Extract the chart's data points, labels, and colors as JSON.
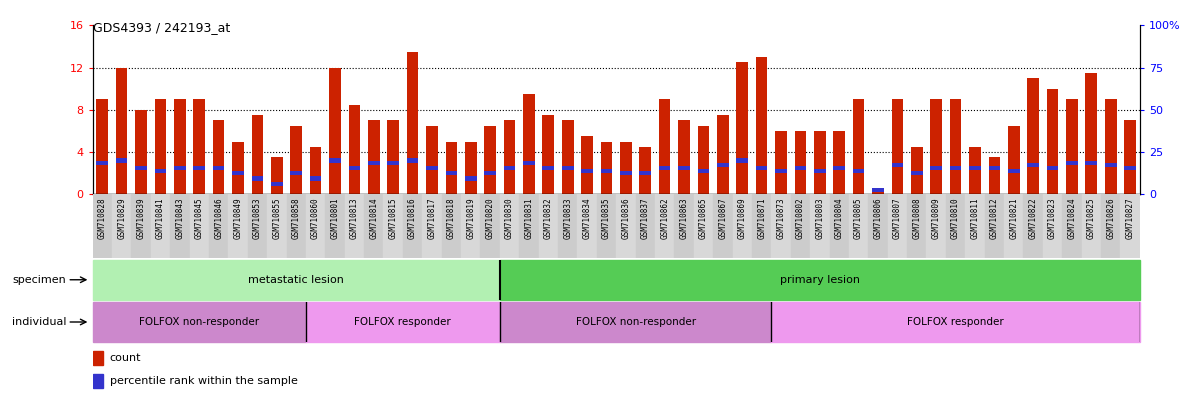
{
  "title": "GDS4393 / 242193_at",
  "samples": [
    "GSM710828",
    "GSM710829",
    "GSM710839",
    "GSM710841",
    "GSM710843",
    "GSM710845",
    "GSM710846",
    "GSM710849",
    "GSM710853",
    "GSM710855",
    "GSM710858",
    "GSM710860",
    "GSM710801",
    "GSM710813",
    "GSM710814",
    "GSM710815",
    "GSM710816",
    "GSM710817",
    "GSM710818",
    "GSM710819",
    "GSM710820",
    "GSM710830",
    "GSM710831",
    "GSM710832",
    "GSM710833",
    "GSM710834",
    "GSM710835",
    "GSM710836",
    "GSM710837",
    "GSM710862",
    "GSM710863",
    "GSM710865",
    "GSM710867",
    "GSM710869",
    "GSM710871",
    "GSM710873",
    "GSM710802",
    "GSM710803",
    "GSM710804",
    "GSM710805",
    "GSM710806",
    "GSM710807",
    "GSM710808",
    "GSM710809",
    "GSM710810",
    "GSM710811",
    "GSM710812",
    "GSM710821",
    "GSM710822",
    "GSM710823",
    "GSM710824",
    "GSM710825",
    "GSM710826",
    "GSM710827"
  ],
  "count_values": [
    9.0,
    12.0,
    8.0,
    9.0,
    9.0,
    9.0,
    7.0,
    5.0,
    7.5,
    3.5,
    6.5,
    4.5,
    12.0,
    8.5,
    7.0,
    7.0,
    13.5,
    6.5,
    5.0,
    5.0,
    6.5,
    7.0,
    9.5,
    7.5,
    7.0,
    5.5,
    5.0,
    5.0,
    4.5,
    9.0,
    7.0,
    6.5,
    7.5,
    12.5,
    13.0,
    6.0,
    6.0,
    6.0,
    6.0,
    9.0,
    0.5,
    9.0,
    4.5,
    9.0,
    9.0,
    4.5,
    3.5,
    6.5,
    11.0,
    10.0,
    9.0,
    11.5,
    9.0,
    7.0
  ],
  "percentile_values": [
    3.0,
    3.2,
    2.5,
    2.2,
    2.5,
    2.5,
    2.5,
    2.0,
    1.5,
    1.0,
    2.0,
    1.5,
    3.2,
    2.5,
    3.0,
    3.0,
    3.2,
    2.5,
    2.0,
    1.5,
    2.0,
    2.5,
    3.0,
    2.5,
    2.5,
    2.2,
    2.2,
    2.0,
    2.0,
    2.5,
    2.5,
    2.2,
    2.8,
    3.2,
    2.5,
    2.2,
    2.5,
    2.2,
    2.5,
    2.2,
    0.4,
    2.8,
    2.0,
    2.5,
    2.5,
    2.5,
    2.5,
    2.2,
    2.8,
    2.5,
    3.0,
    3.0,
    2.8,
    2.5
  ],
  "specimen_groups": [
    {
      "label": "metastatic lesion",
      "start": 0,
      "end": 21,
      "color": "#b2f0b2"
    },
    {
      "label": "primary lesion",
      "start": 21,
      "end": 54,
      "color": "#55cc55"
    }
  ],
  "individual_groups": [
    {
      "label": "FOLFOX non-responder",
      "start": 0,
      "end": 11,
      "color": "#cc88cc"
    },
    {
      "label": "FOLFOX responder",
      "start": 11,
      "end": 21,
      "color": "#ee99ee"
    },
    {
      "label": "FOLFOX non-responder",
      "start": 21,
      "end": 35,
      "color": "#cc88cc"
    },
    {
      "label": "FOLFOX responder",
      "start": 35,
      "end": 54,
      "color": "#ee99ee"
    }
  ],
  "specimen_boundary": 21,
  "ylim_left": [
    0,
    16
  ],
  "ylim_right": [
    0,
    100
  ],
  "yticks_left": [
    0,
    4,
    8,
    12,
    16
  ],
  "yticks_right": [
    0,
    25,
    50,
    75,
    100
  ],
  "bar_color": "#CC2200",
  "percentile_color": "#3333CC",
  "bar_width": 0.6,
  "grid_color": "black",
  "ticklabel_bg": "#D0D0D0"
}
